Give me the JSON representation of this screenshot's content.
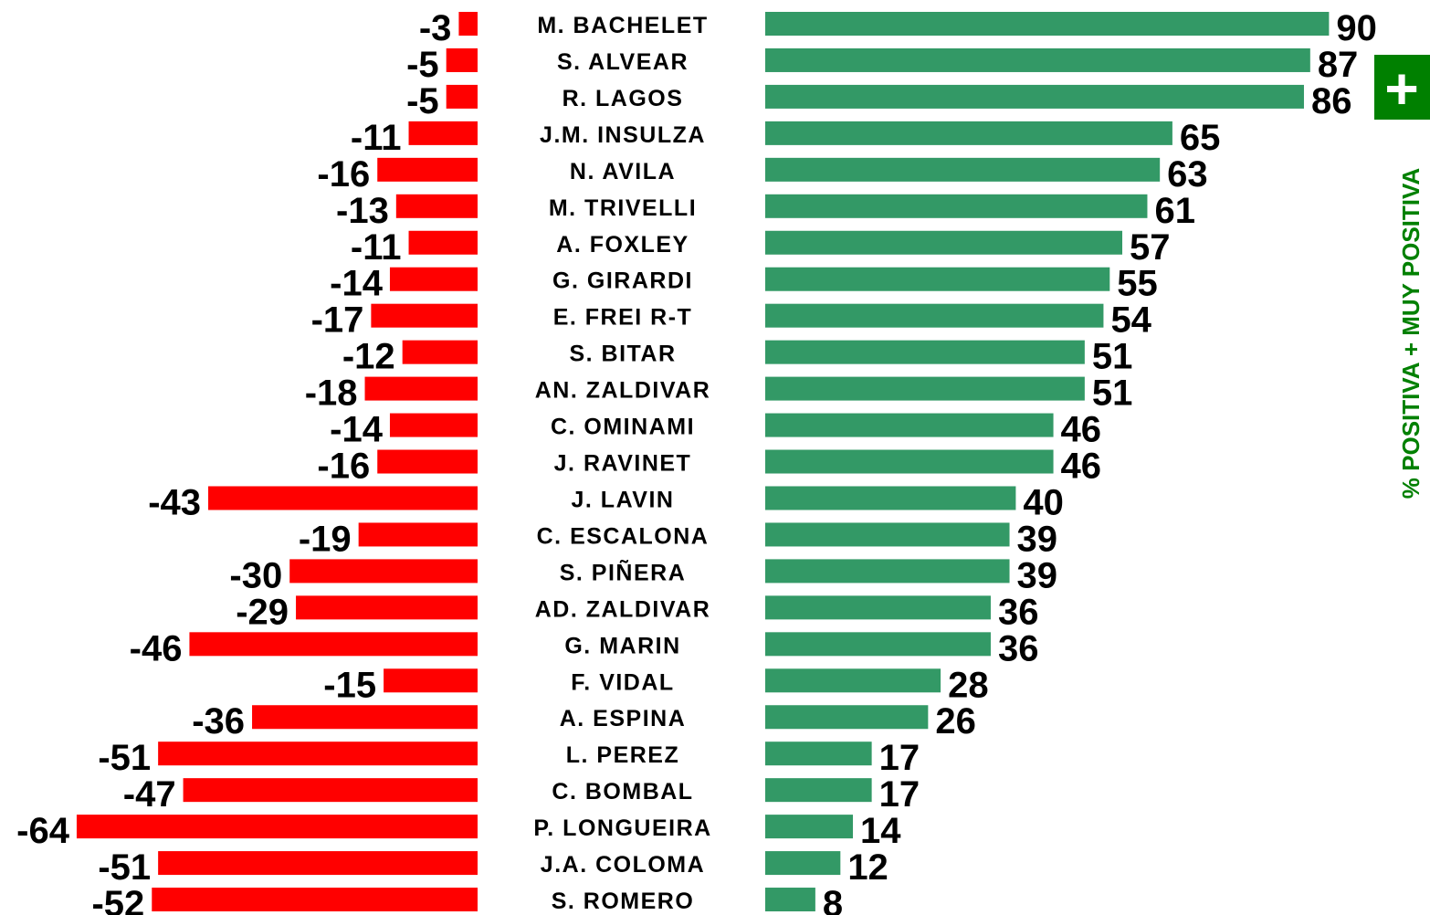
{
  "chart_data": {
    "type": "diverging-bar",
    "categories": [
      "M. BACHELET",
      "S. ALVEAR",
      "R. LAGOS",
      "J.M. INSULZA",
      "N. AVILA",
      "M. TRIVELLI",
      "A. FOXLEY",
      "G. GIRARDI",
      "E. FREI R-T",
      "S. BITAR",
      "AN. ZALDIVAR",
      "C. OMINAMI",
      "J. RAVINET",
      "J. LAVIN",
      "C. ESCALONA",
      "S. PIÑERA",
      "AD. ZALDIVAR",
      "G. MARIN",
      "F. VIDAL",
      "A. ESPINA",
      "L. PEREZ",
      "C. BOMBAL",
      "P. LONGUEIRA",
      "J.A. COLOMA",
      "S. ROMERO"
    ],
    "series": [
      {
        "color": "#ff0000",
        "values": [
          -3,
          -5,
          -5,
          -11,
          -16,
          -13,
          -11,
          -14,
          -17,
          -12,
          -18,
          -14,
          -16,
          -43,
          -19,
          -30,
          -29,
          -46,
          -15,
          -36,
          -51,
          -47,
          -64,
          -51,
          -52
        ]
      },
      {
        "name": "% POSITIVA + MUY POSITIVA",
        "color": "#339966",
        "values": [
          90,
          87,
          86,
          65,
          63,
          61,
          57,
          55,
          54,
          51,
          51,
          46,
          46,
          40,
          39,
          39,
          36,
          36,
          28,
          26,
          17,
          17,
          14,
          12,
          8
        ]
      }
    ],
    "legend_symbol": "+",
    "legend_color": "#008000"
  }
}
